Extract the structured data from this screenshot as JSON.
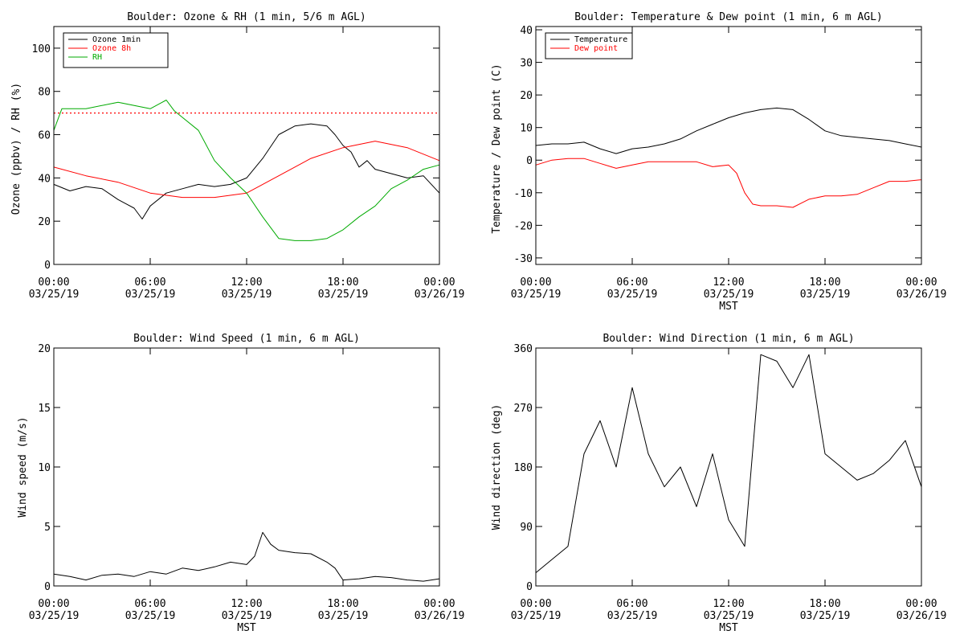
{
  "chart_data": [
    {
      "type": "line",
      "title": "Boulder: Ozone & RH (1 min, 5/6 m AGL)",
      "xlabel": "",
      "ylabel": "Ozone (ppbv) / RH (%)",
      "xlim": [
        "00:00",
        "24:00"
      ],
      "ylim": [
        0,
        110
      ],
      "x_ticks": [
        [
          "00:00",
          "03/25/19"
        ],
        [
          "06:00",
          "03/25/19"
        ],
        [
          "12:00",
          "03/25/19"
        ],
        [
          "18:00",
          "03/25/19"
        ],
        [
          "00:00",
          "03/26/19"
        ]
      ],
      "y_ticks": [
        0,
        20,
        40,
        60,
        80,
        100
      ],
      "legend": "top-left",
      "reference_line": {
        "y": 70,
        "style": "dotted",
        "color": "#ff0000"
      },
      "series": [
        {
          "name": "Ozone 1min",
          "color": "#000000",
          "x": [
            "00:00",
            "01:00",
            "02:00",
            "03:00",
            "04:00",
            "05:00",
            "05:30",
            "06:00",
            "07:00",
            "08:00",
            "09:00",
            "10:00",
            "11:00",
            "12:00",
            "13:00",
            "14:00",
            "15:00",
            "16:00",
            "17:00",
            "17:30",
            "18:00",
            "18:30",
            "19:00",
            "19:30",
            "20:00",
            "21:00",
            "22:00",
            "23:00",
            "24:00"
          ],
          "y": [
            37,
            34,
            36,
            35,
            30,
            26,
            21,
            27,
            33,
            35,
            37,
            36,
            37,
            40,
            49,
            60,
            64,
            65,
            64,
            60,
            55,
            52,
            45,
            48,
            44,
            42,
            40,
            41,
            33
          ]
        },
        {
          "name": "Ozone 8h",
          "color": "#ff0000",
          "x": [
            "00:00",
            "02:00",
            "04:00",
            "06:00",
            "08:00",
            "10:00",
            "12:00",
            "14:00",
            "16:00",
            "18:00",
            "20:00",
            "22:00",
            "24:00"
          ],
          "y": [
            45,
            41,
            38,
            33,
            31,
            31,
            33,
            41,
            49,
            54,
            57,
            54,
            48
          ]
        },
        {
          "name": "RH",
          "color": "#00aa00",
          "x": [
            "00:00",
            "00:30",
            "02:00",
            "04:00",
            "06:00",
            "07:00",
            "07:30",
            "08:00",
            "09:00",
            "10:00",
            "11:00",
            "12:00",
            "13:00",
            "14:00",
            "15:00",
            "16:00",
            "17:00",
            "18:00",
            "19:00",
            "20:00",
            "21:00",
            "22:00",
            "23:00",
            "24:00"
          ],
          "y": [
            62,
            72,
            72,
            75,
            72,
            76,
            71,
            68,
            62,
            48,
            40,
            33,
            22,
            12,
            11,
            11,
            12,
            16,
            22,
            27,
            35,
            39,
            44,
            46
          ]
        }
      ]
    },
    {
      "type": "line",
      "title": "Boulder: Temperature & Dew point (1 min, 6 m AGL)",
      "xlabel": "MST",
      "ylabel": "Temperature / Dew point (C)",
      "xlim": [
        "00:00",
        "24:00"
      ],
      "ylim": [
        -32,
        41
      ],
      "x_ticks": [
        [
          "00:00",
          "03/25/19"
        ],
        [
          "06:00",
          "03/25/19"
        ],
        [
          "12:00",
          "03/25/19"
        ],
        [
          "18:00",
          "03/25/19"
        ],
        [
          "00:00",
          "03/26/19"
        ]
      ],
      "y_ticks": [
        -30,
        -20,
        -10,
        0,
        10,
        20,
        30,
        40
      ],
      "legend": "top-left",
      "series": [
        {
          "name": "Temperature",
          "color": "#000000",
          "x": [
            "00:00",
            "01:00",
            "02:00",
            "03:00",
            "04:00",
            "05:00",
            "06:00",
            "07:00",
            "08:00",
            "09:00",
            "10:00",
            "11:00",
            "12:00",
            "13:00",
            "14:00",
            "15:00",
            "16:00",
            "17:00",
            "18:00",
            "19:00",
            "20:00",
            "21:00",
            "22:00",
            "23:00",
            "24:00"
          ],
          "y": [
            4.5,
            5,
            5,
            5.5,
            3.5,
            2,
            3.5,
            4,
            5,
            6.5,
            9,
            11,
            13,
            14.5,
            15.5,
            16,
            15.5,
            12.5,
            9,
            7.5,
            7,
            6.5,
            6,
            5,
            4
          ]
        },
        {
          "name": "Dew point",
          "color": "#ff0000",
          "x": [
            "00:00",
            "01:00",
            "02:00",
            "03:00",
            "04:00",
            "05:00",
            "06:00",
            "07:00",
            "08:00",
            "09:00",
            "10:00",
            "11:00",
            "12:00",
            "12:30",
            "13:00",
            "13:30",
            "14:00",
            "15:00",
            "16:00",
            "17:00",
            "18:00",
            "19:00",
            "20:00",
            "21:00",
            "22:00",
            "23:00",
            "24:00"
          ],
          "y": [
            -1.5,
            0,
            0.5,
            0.5,
            -1,
            -2.5,
            -1.5,
            -0.5,
            -0.5,
            -0.5,
            -0.5,
            -2,
            -1.5,
            -4,
            -10,
            -13.5,
            -14,
            -14,
            -14.5,
            -12,
            -11,
            -11,
            -10.5,
            -8.5,
            -6.5,
            -6.5,
            -6
          ]
        }
      ]
    },
    {
      "type": "line",
      "title": "Boulder: Wind Speed (1 min, 6 m AGL)",
      "xlabel": "MST",
      "ylabel": "Wind speed (m/s)",
      "xlim": [
        "00:00",
        "24:00"
      ],
      "ylim": [
        0,
        20
      ],
      "x_ticks": [
        [
          "00:00",
          "03/25/19"
        ],
        [
          "06:00",
          "03/25/19"
        ],
        [
          "12:00",
          "03/25/19"
        ],
        [
          "18:00",
          "03/25/19"
        ],
        [
          "00:00",
          "03/26/19"
        ]
      ],
      "y_ticks": [
        0,
        5,
        10,
        15,
        20
      ],
      "series": [
        {
          "color": "#000000",
          "x": [
            "00:00",
            "01:00",
            "02:00",
            "03:00",
            "04:00",
            "05:00",
            "06:00",
            "07:00",
            "08:00",
            "09:00",
            "10:00",
            "11:00",
            "12:00",
            "12:30",
            "13:00",
            "13:30",
            "14:00",
            "15:00",
            "16:00",
            "17:00",
            "17:30",
            "18:00",
            "19:00",
            "20:00",
            "21:00",
            "22:00",
            "23:00",
            "24:00"
          ],
          "y": [
            1.0,
            0.8,
            0.5,
            0.9,
            1.0,
            0.8,
            1.2,
            1.0,
            1.5,
            1.3,
            1.6,
            2.0,
            1.8,
            2.5,
            4.5,
            3.5,
            3.0,
            2.8,
            2.7,
            2.0,
            1.5,
            0.5,
            0.6,
            0.8,
            0.7,
            0.5,
            0.4,
            0.6
          ]
        }
      ]
    },
    {
      "type": "line",
      "title": "Boulder: Wind Direction (1 min, 6 m AGL)",
      "xlabel": "MST",
      "ylabel": "Wind direction (deg)",
      "xlim": [
        "00:00",
        "24:00"
      ],
      "ylim": [
        0,
        360
      ],
      "x_ticks": [
        [
          "00:00",
          "03/25/19"
        ],
        [
          "06:00",
          "03/25/19"
        ],
        [
          "12:00",
          "03/25/19"
        ],
        [
          "18:00",
          "03/25/19"
        ],
        [
          "00:00",
          "03/26/19"
        ]
      ],
      "y_ticks": [
        0,
        90,
        180,
        270,
        360
      ],
      "series": [
        {
          "color": "#000000",
          "x": [
            "00:00",
            "01:00",
            "02:00",
            "03:00",
            "04:00",
            "05:00",
            "06:00",
            "07:00",
            "08:00",
            "09:00",
            "10:00",
            "11:00",
            "12:00",
            "13:00",
            "14:00",
            "15:00",
            "16:00",
            "17:00",
            "18:00",
            "19:00",
            "20:00",
            "21:00",
            "22:00",
            "23:00",
            "24:00"
          ],
          "y": [
            20,
            40,
            60,
            200,
            250,
            180,
            300,
            200,
            150,
            180,
            120,
            200,
            100,
            60,
            350,
            340,
            300,
            350,
            200,
            180,
            160,
            170,
            190,
            220,
            150
          ]
        }
      ]
    }
  ]
}
